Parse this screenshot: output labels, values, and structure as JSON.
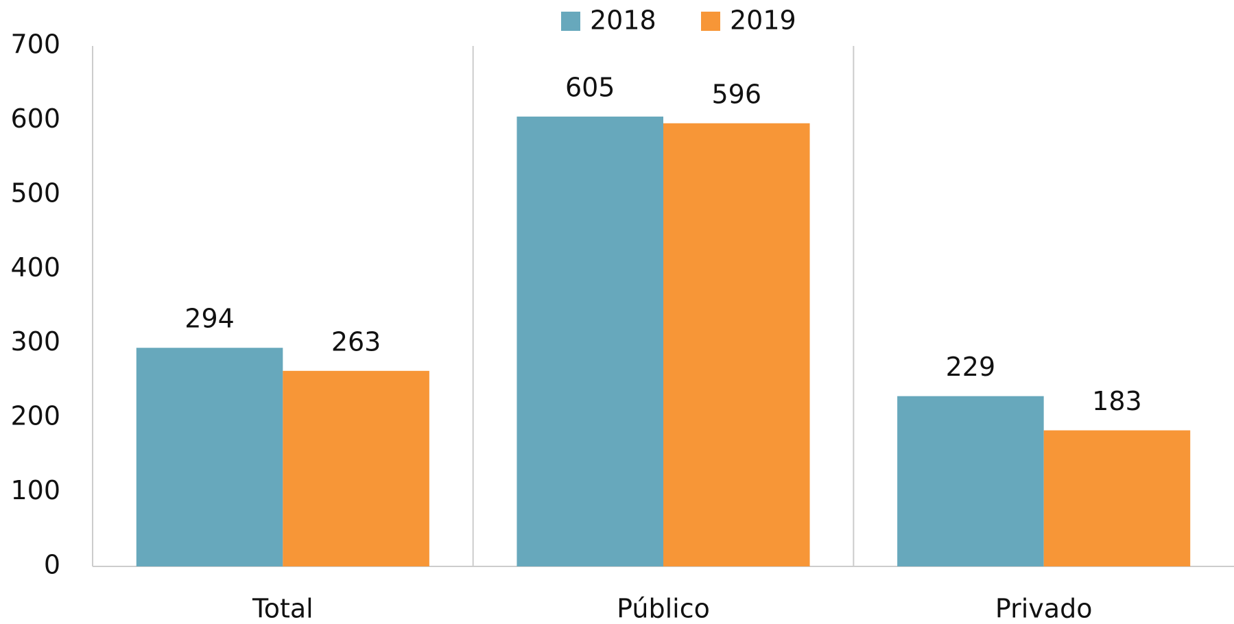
{
  "chart_data": {
    "type": "bar",
    "categories": [
      "Total",
      "Público",
      "Privado"
    ],
    "series": [
      {
        "name": "2018",
        "color": "#67a8bc",
        "values": [
          294,
          605,
          229
        ]
      },
      {
        "name": "2019",
        "color": "#f79637",
        "values": [
          263,
          596,
          183
        ]
      }
    ],
    "ylim": [
      0,
      700
    ],
    "yticks": [
      0,
      100,
      200,
      300,
      400,
      500,
      600,
      700
    ],
    "grid": false,
    "legend": "top"
  }
}
